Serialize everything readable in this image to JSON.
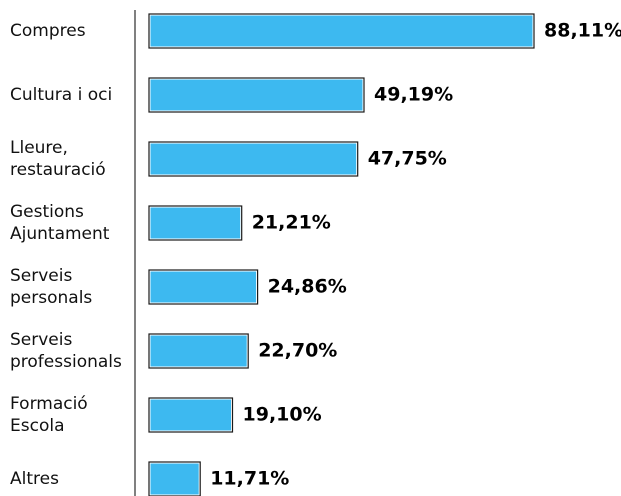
{
  "chart_data": {
    "type": "bar",
    "orientation": "horizontal",
    "categories": [
      [
        "Compres"
      ],
      [
        "Cultura i oci"
      ],
      [
        "Lleure,",
        "restauració"
      ],
      [
        "Gestions",
        "Ajuntament"
      ],
      [
        "Serveis",
        "personals"
      ],
      [
        "Serveis",
        "professionals"
      ],
      [
        "Formació",
        "Escola"
      ],
      [
        "Altres"
      ]
    ],
    "values": [
      88.11,
      49.19,
      47.75,
      21.21,
      24.86,
      22.7,
      19.1,
      11.71
    ],
    "value_labels": [
      "88,11%",
      "49,19%",
      "47,75%",
      "21,21%",
      "24,86%",
      "22,70%",
      "19,10%",
      "11,71%"
    ],
    "xlim": [
      0,
      100
    ],
    "grid": false,
    "title": "",
    "xlabel": "",
    "ylabel": ""
  },
  "colors": {
    "bar_fill": "#3DB9F0",
    "bar_outline": "#1a1a1a",
    "axis": "#000000",
    "text": "#111111"
  }
}
